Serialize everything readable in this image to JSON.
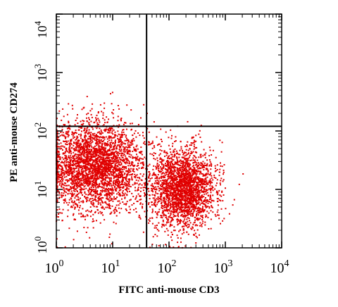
{
  "chart_data": {
    "type": "scatter",
    "title": "",
    "xlabel": "FITC anti-mouse CD3",
    "ylabel": "PE anti-mouse CD274",
    "x_scale": "log",
    "y_scale": "log",
    "xlim": [
      1,
      10000
    ],
    "ylim": [
      1,
      10000
    ],
    "x_ticks": [
      {
        "value": 1,
        "base": "10",
        "exp": "0"
      },
      {
        "value": 10,
        "base": "10",
        "exp": "1"
      },
      {
        "value": 100,
        "base": "10",
        "exp": "2"
      },
      {
        "value": 1000,
        "base": "10",
        "exp": "3"
      },
      {
        "value": 10000,
        "base": "10",
        "exp": "4"
      }
    ],
    "y_ticks": [
      {
        "value": 1,
        "base": "10",
        "exp": "0"
      },
      {
        "value": 10,
        "base": "10",
        "exp": "1"
      },
      {
        "value": 100,
        "base": "10",
        "exp": "2"
      },
      {
        "value": 1000,
        "base": "10",
        "exp": "3"
      },
      {
        "value": 10000,
        "base": "10",
        "exp": "4"
      }
    ],
    "quadrant_gate": {
      "x": 40,
      "y": 120
    },
    "point_color": "#e00000",
    "populations": [
      {
        "center": [
          5,
          25
        ],
        "spread_decades": [
          0.45,
          0.38
        ],
        "events": 3200
      },
      {
        "center": [
          180,
          10
        ],
        "spread_decades": [
          0.28,
          0.35
        ],
        "events": 2400
      }
    ],
    "grid": false,
    "legend": "none"
  }
}
